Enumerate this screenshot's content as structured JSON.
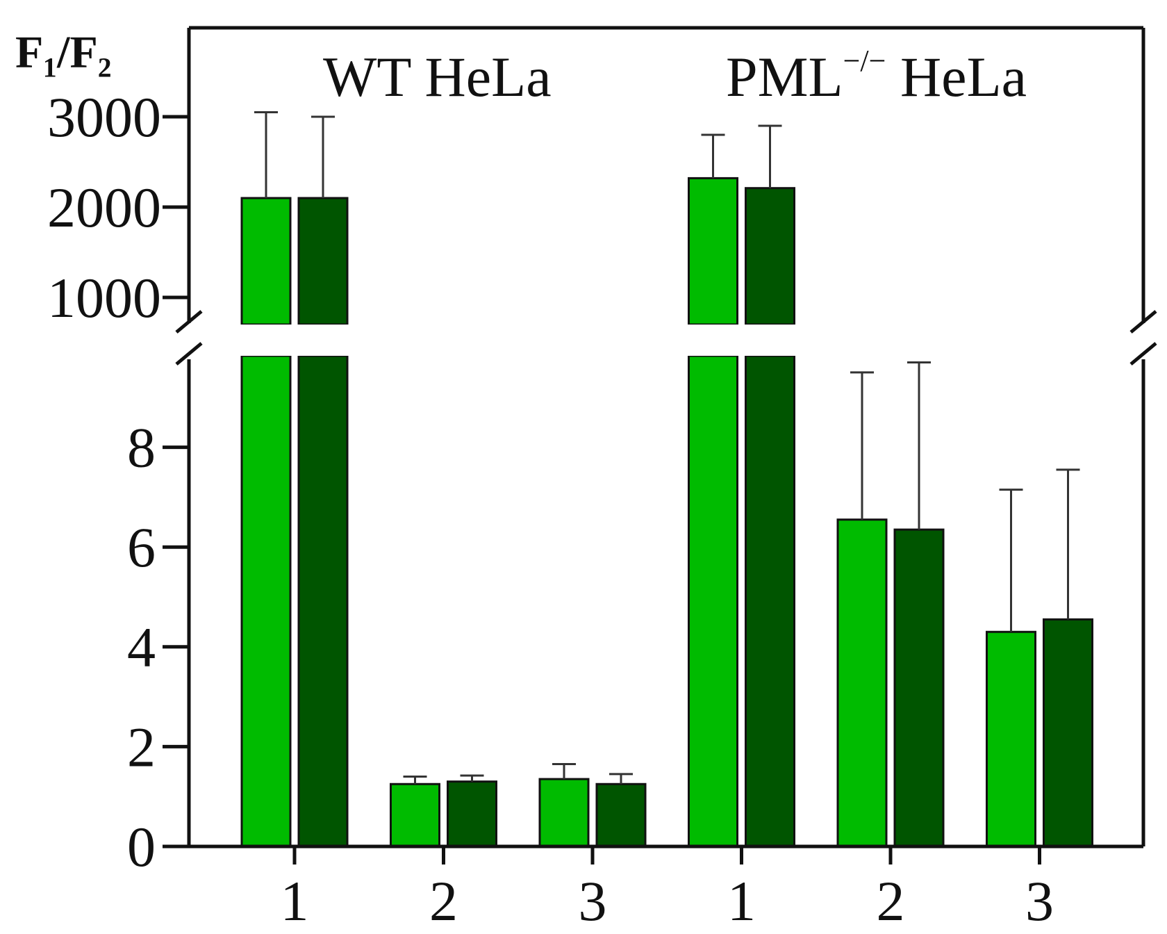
{
  "chart_data": {
    "type": "bar",
    "ylabel": "F₁/F₂",
    "groups": [
      {
        "label_main": "WT HeLa",
        "label_sup": ""
      },
      {
        "label_main": "PML",
        "label_sup": "−/−",
        "label_tail": " HeLa"
      }
    ],
    "categories": [
      "1",
      "2",
      "3",
      "1",
      "2",
      "3"
    ],
    "axis_break": true,
    "lower_axis": {
      "ylim": [
        0,
        10
      ],
      "ticks": [
        0,
        2,
        4,
        6,
        8
      ]
    },
    "upper_axis": {
      "ylim": [
        700,
        3100
      ],
      "ticks": [
        1000,
        2000,
        3000
      ]
    },
    "series": [
      {
        "color": "#00bb00",
        "values": [
          2100,
          1.25,
          1.35,
          2320,
          6.55,
          4.3
        ],
        "errors": [
          950,
          0.15,
          0.3,
          480,
          2.95,
          2.85
        ]
      },
      {
        "color": "#005500",
        "values": [
          2100,
          1.3,
          1.25,
          2210,
          6.35,
          4.55
        ],
        "errors": [
          900,
          0.12,
          0.2,
          690,
          3.35,
          3.0
        ]
      }
    ],
    "grid": false,
    "legend": "none"
  }
}
